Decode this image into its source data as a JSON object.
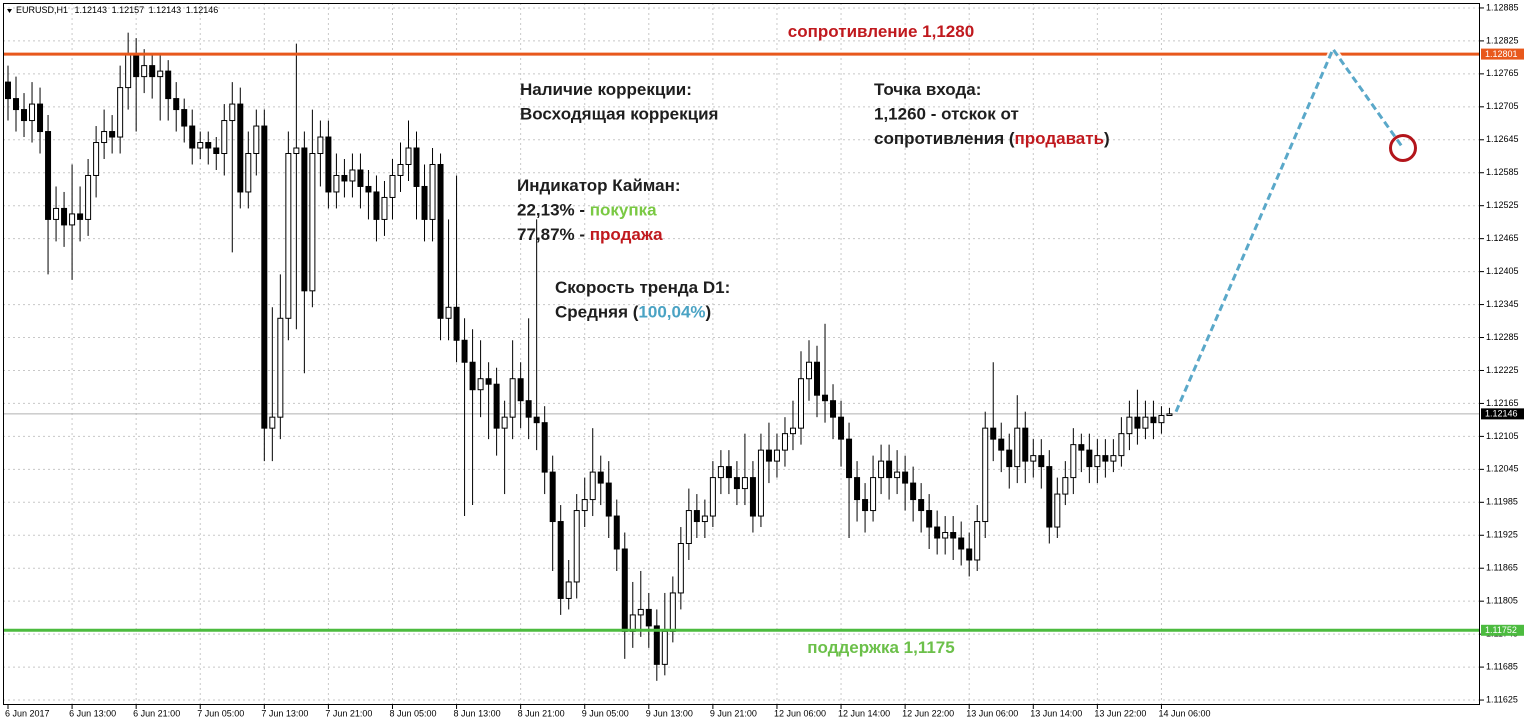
{
  "chart_data": {
    "type": "candlestick",
    "symbol": "EURUSD,H1",
    "categories": [
      "6 Jun 2017",
      null,
      null,
      null,
      null,
      null,
      null,
      null,
      "6 Jun 13:00",
      null,
      null,
      null,
      null,
      null,
      null,
      null,
      "6 Jun 21:00",
      null,
      null,
      null,
      null,
      null,
      null,
      null,
      "7 Jun 05:00",
      null,
      null,
      null,
      null,
      null,
      null,
      null,
      "7 Jun 13:00",
      null,
      null,
      null,
      null,
      null,
      null,
      null,
      "7 Jun 21:00",
      null,
      null,
      null,
      null,
      null,
      null,
      null,
      "8 Jun 05:00",
      null,
      null,
      null,
      null,
      null,
      null,
      null,
      "8 Jun 13:00",
      null,
      null,
      null,
      null,
      null,
      null,
      null,
      "8 Jun 21:00",
      null,
      null,
      null,
      null,
      null,
      null,
      null,
      "9 Jun 05:00",
      null,
      null,
      null,
      null,
      null,
      null,
      null,
      "9 Jun 13:00",
      null,
      null,
      null,
      null,
      null,
      null,
      null,
      "9 Jun 21:00",
      null,
      null,
      null,
      null,
      null,
      null,
      null,
      "12 Jun 06:00",
      null,
      null,
      null,
      null,
      null,
      null,
      null,
      "12 Jun 14:00",
      null,
      null,
      null,
      null,
      null,
      null,
      null,
      "12 Jun 22:00",
      null,
      null,
      null,
      null,
      null,
      null,
      null,
      "13 Jun 06:00",
      null,
      null,
      null,
      null,
      null,
      null,
      null,
      "13 Jun 14:00",
      null,
      null,
      null,
      null,
      null,
      null,
      null,
      "13 Jun 22:00",
      null,
      null,
      null,
      null,
      null,
      null,
      null,
      "14 Jun 06:00",
      null
    ],
    "open": [
      1.1275,
      1.1272,
      1.127,
      1.1268,
      1.1271,
      1.1266,
      1.125,
      1.1252,
      1.1249,
      1.1251,
      1.125,
      1.1258,
      1.1264,
      1.1266,
      1.1265,
      1.1274,
      1.128,
      1.1276,
      1.1278,
      1.1276,
      1.1277,
      1.1272,
      1.127,
      1.1267,
      1.1263,
      1.1264,
      1.1263,
      1.1262,
      1.1268,
      1.1271,
      1.1255,
      1.1262,
      1.1267,
      1.1212,
      1.1214,
      1.1232,
      1.1262,
      1.1263,
      1.1237,
      1.1262,
      1.1265,
      1.1255,
      1.1258,
      1.1257,
      1.1259,
      1.1256,
      1.1255,
      1.125,
      1.1254,
      1.1258,
      1.126,
      1.1263,
      1.1256,
      1.125,
      1.126,
      1.1232,
      1.1234,
      1.1228,
      1.1224,
      1.1219,
      1.1221,
      1.122,
      1.1212,
      1.1214,
      1.1221,
      1.1217,
      1.1214,
      1.1213,
      1.1204,
      1.1195,
      1.1181,
      1.1184,
      1.1197,
      1.1199,
      1.1204,
      1.1202,
      1.1196,
      1.119,
      1.1175,
      1.1178,
      1.1179,
      1.1176,
      1.1169,
      1.1175,
      1.1182,
      1.1191,
      1.1197,
      1.1195,
      1.1196,
      1.1203,
      1.1205,
      1.1203,
      1.1201,
      1.1203,
      1.1196,
      1.1208,
      1.1206,
      1.1208,
      1.1211,
      1.1212,
      1.1221,
      1.1224,
      1.1218,
      1.1217,
      1.1214,
      1.121,
      1.1203,
      1.1199,
      1.1197,
      1.1203,
      1.1206,
      1.1203,
      1.1204,
      1.1202,
      1.1199,
      1.1197,
      1.1194,
      1.1192,
      1.1193,
      1.1192,
      1.119,
      1.1188,
      1.1195,
      1.1212,
      1.121,
      1.1208,
      1.1205,
      1.1212,
      1.1206,
      1.1207,
      1.1205,
      1.1194,
      1.12,
      1.1203,
      1.1209,
      1.1208,
      1.1205,
      1.1207,
      1.1206,
      1.1207,
      1.1211,
      1.1214,
      1.1212,
      1.1214,
      1.1213,
      1.12143
    ],
    "high": [
      1.1278,
      1.1276,
      1.1273,
      1.1275,
      1.1274,
      1.1269,
      1.1256,
      1.1255,
      1.126,
      1.1256,
      1.1261,
      1.1267,
      1.127,
      1.1269,
      1.1278,
      1.1284,
      1.1283,
      1.1281,
      1.128,
      1.128,
      1.1279,
      1.1275,
      1.1272,
      1.127,
      1.1266,
      1.1266,
      1.1265,
      1.1271,
      1.1275,
      1.1274,
      1.1266,
      1.127,
      1.127,
      1.1234,
      1.124,
      1.1266,
      1.1282,
      1.1266,
      1.127,
      1.1268,
      1.1268,
      1.1262,
      1.1261,
      1.1262,
      1.1262,
      1.1259,
      1.1258,
      1.1257,
      1.1261,
      1.1264,
      1.1268,
      1.1266,
      1.126,
      1.1263,
      1.1262,
      1.125,
      1.1258,
      1.1232,
      1.123,
      1.1228,
      1.1224,
      1.1223,
      1.1217,
      1.1228,
      1.1224,
      1.1232,
      1.125,
      1.1216,
      1.1207,
      1.1198,
      1.1188,
      1.12,
      1.1203,
      1.1212,
      1.1207,
      1.1206,
      1.1199,
      1.1193,
      1.1184,
      1.1186,
      1.1182,
      1.1179,
      1.1182,
      1.1185,
      1.1194,
      1.1201,
      1.12,
      1.1199,
      1.1206,
      1.1208,
      1.1208,
      1.1206,
      1.1211,
      1.1206,
      1.1211,
      1.1213,
      1.1211,
      1.1214,
      1.1217,
      1.1226,
      1.1228,
      1.1227,
      1.1231,
      1.122,
      1.1217,
      1.1213,
      1.1206,
      1.1202,
      1.1207,
      1.1209,
      1.1209,
      1.1208,
      1.1207,
      1.1205,
      1.1202,
      1.12,
      1.1197,
      1.1196,
      1.1196,
      1.1195,
      1.1193,
      1.1198,
      1.1215,
      1.1224,
      1.1213,
      1.1211,
      1.1218,
      1.1215,
      1.121,
      1.121,
      1.1208,
      1.1203,
      1.1206,
      1.1212,
      1.1211,
      1.1211,
      1.121,
      1.121,
      1.121,
      1.1214,
      1.1217,
      1.1219,
      1.1217,
      1.1217,
      1.1216,
      1.12157
    ],
    "low": [
      1.1268,
      1.1266,
      1.1265,
      1.1264,
      1.1262,
      1.124,
      1.1246,
      1.1245,
      1.1239,
      1.1246,
      1.1247,
      1.1254,
      1.1261,
      1.1262,
      1.1262,
      1.127,
      1.1266,
      1.1273,
      1.1272,
      1.1268,
      1.1268,
      1.1266,
      1.1264,
      1.126,
      1.1261,
      1.126,
      1.1259,
      1.1258,
      1.1244,
      1.1252,
      1.1252,
      1.1258,
      1.1206,
      1.1206,
      1.121,
      1.1228,
      1.123,
      1.1222,
      1.1234,
      1.1256,
      1.1252,
      1.1252,
      1.1254,
      1.1254,
      1.1252,
      1.125,
      1.1246,
      1.1247,
      1.125,
      1.1255,
      1.1257,
      1.125,
      1.1246,
      1.1246,
      1.1228,
      1.1228,
      1.1224,
      1.1196,
      1.1198,
      1.1214,
      1.121,
      1.1207,
      1.12,
      1.121,
      1.1212,
      1.121,
      1.1208,
      1.12,
      1.1186,
      1.1178,
      1.1179,
      1.1181,
      1.1194,
      1.1196,
      1.1198,
      1.1192,
      1.1186,
      1.117,
      1.1172,
      1.1174,
      1.1172,
      1.1166,
      1.1167,
      1.1173,
      1.1179,
      1.1188,
      1.1192,
      1.1192,
      1.1194,
      1.12,
      1.12,
      1.1198,
      1.1198,
      1.1193,
      1.1194,
      1.1202,
      1.1203,
      1.1205,
      1.1208,
      1.1209,
      1.1217,
      1.1214,
      1.1213,
      1.121,
      1.1205,
      1.1192,
      1.1195,
      1.1193,
      1.1195,
      1.12,
      1.1199,
      1.12,
      1.1197,
      1.1195,
      1.1193,
      1.119,
      1.1189,
      1.1189,
      1.1188,
      1.1187,
      1.1185,
      1.1186,
      1.1192,
      1.1206,
      1.1204,
      1.1201,
      1.1202,
      1.1202,
      1.1203,
      1.1201,
      1.1191,
      1.1192,
      1.1198,
      1.12,
      1.1204,
      1.1202,
      1.1202,
      1.1203,
      1.1204,
      1.1205,
      1.1208,
      1.1209,
      1.121,
      1.121,
      1.1211,
      1.12143
    ],
    "close": [
      1.1272,
      1.127,
      1.1268,
      1.1271,
      1.1266,
      1.125,
      1.1252,
      1.1249,
      1.1251,
      1.125,
      1.1258,
      1.1264,
      1.1266,
      1.1265,
      1.1274,
      1.128,
      1.1276,
      1.1278,
      1.1276,
      1.1277,
      1.1272,
      1.127,
      1.1267,
      1.1263,
      1.1264,
      1.1263,
      1.1262,
      1.1268,
      1.1271,
      1.1255,
      1.1262,
      1.1267,
      1.1212,
      1.1214,
      1.1232,
      1.1262,
      1.1263,
      1.1237,
      1.1262,
      1.1265,
      1.1255,
      1.1258,
      1.1257,
      1.1259,
      1.1256,
      1.1255,
      1.125,
      1.1254,
      1.1258,
      1.126,
      1.1263,
      1.1256,
      1.125,
      1.126,
      1.1232,
      1.1234,
      1.1228,
      1.1224,
      1.1219,
      1.1221,
      1.122,
      1.1212,
      1.1214,
      1.1221,
      1.1217,
      1.1214,
      1.1213,
      1.1204,
      1.1195,
      1.1181,
      1.1184,
      1.1197,
      1.1199,
      1.1204,
      1.1202,
      1.1196,
      1.119,
      1.1175,
      1.1178,
      1.1179,
      1.1176,
      1.1169,
      1.1175,
      1.1182,
      1.1191,
      1.1197,
      1.1195,
      1.1196,
      1.1203,
      1.1205,
      1.1203,
      1.1201,
      1.1203,
      1.1196,
      1.1208,
      1.1206,
      1.1208,
      1.1211,
      1.1212,
      1.1221,
      1.1224,
      1.1218,
      1.1217,
      1.1214,
      1.121,
      1.1203,
      1.1199,
      1.1197,
      1.1203,
      1.1206,
      1.1203,
      1.1204,
      1.1202,
      1.1199,
      1.1197,
      1.1194,
      1.1192,
      1.1193,
      1.1192,
      1.119,
      1.1188,
      1.1195,
      1.1212,
      1.121,
      1.1208,
      1.1205,
      1.1212,
      1.1206,
      1.1207,
      1.1205,
      1.1194,
      1.12,
      1.1203,
      1.1209,
      1.1208,
      1.1205,
      1.1207,
      1.1206,
      1.1207,
      1.1211,
      1.1214,
      1.1212,
      1.1214,
      1.1213,
      1.12143,
      1.12146
    ],
    "up_color": "#ffffff",
    "down_color": "#000000",
    "ylim": [
      1.11616,
      1.12894
    ],
    "yticks": [
      1.12885,
      1.12825,
      1.12765,
      1.12705,
      1.12645,
      1.12585,
      1.12525,
      1.12465,
      1.12405,
      1.12345,
      1.12285,
      1.12225,
      1.12165,
      1.12105,
      1.12045,
      1.11985,
      1.11925,
      1.11865,
      1.11805,
      1.11745,
      1.11685,
      1.11625
    ],
    "grid": true,
    "hlines": [
      {
        "value": 1.12801,
        "color": "#e8581c"
      },
      {
        "value": 1.11752,
        "color": "#4cbb3f"
      }
    ],
    "forecast": {
      "color": "#5aa8c9",
      "values": [
        1.1215,
        1.1281,
        1.1263
      ]
    },
    "annotations": [
      {
        "lines": [
          [
            {
              "text": "сопротивление 1,1280",
              "color": "#c0191e"
            }
          ]
        ]
      },
      {
        "lines": [
          [
            {
              "text": "поддержка 1,1175",
              "color": "#6cc04a"
            }
          ]
        ]
      },
      {
        "lines": [
          [
            {
              "text": "Наличие коррекции:"
            }
          ],
          [
            {
              "text": "Восходящая коррекция"
            }
          ]
        ]
      },
      {
        "lines": [
          [
            {
              "text": "Точка входа:"
            }
          ],
          [
            {
              "text": "1,1260 - отскок от"
            }
          ],
          [
            {
              "text": "сопротивления ("
            },
            {
              "text": "продавать",
              "color": "#c0191e"
            },
            {
              "text": ")"
            }
          ]
        ]
      },
      {
        "lines": [
          [
            {
              "text": "Индикатор Кайман:"
            }
          ],
          [
            {
              "text": "22,13% - "
            },
            {
              "text": "покупка",
              "color": "#7ac943"
            }
          ],
          [
            {
              "text": "77,87% - "
            },
            {
              "text": "продажа",
              "color": "#c0191e"
            }
          ]
        ]
      },
      {
        "lines": [
          [
            {
              "text": "Скорость тренда D1:"
            }
          ],
          [
            {
              "text": "Средняя ("
            },
            {
              "text": "100,04%",
              "color": "#4aa3c4"
            },
            {
              "text": ")"
            }
          ]
        ]
      }
    ]
  }
}
